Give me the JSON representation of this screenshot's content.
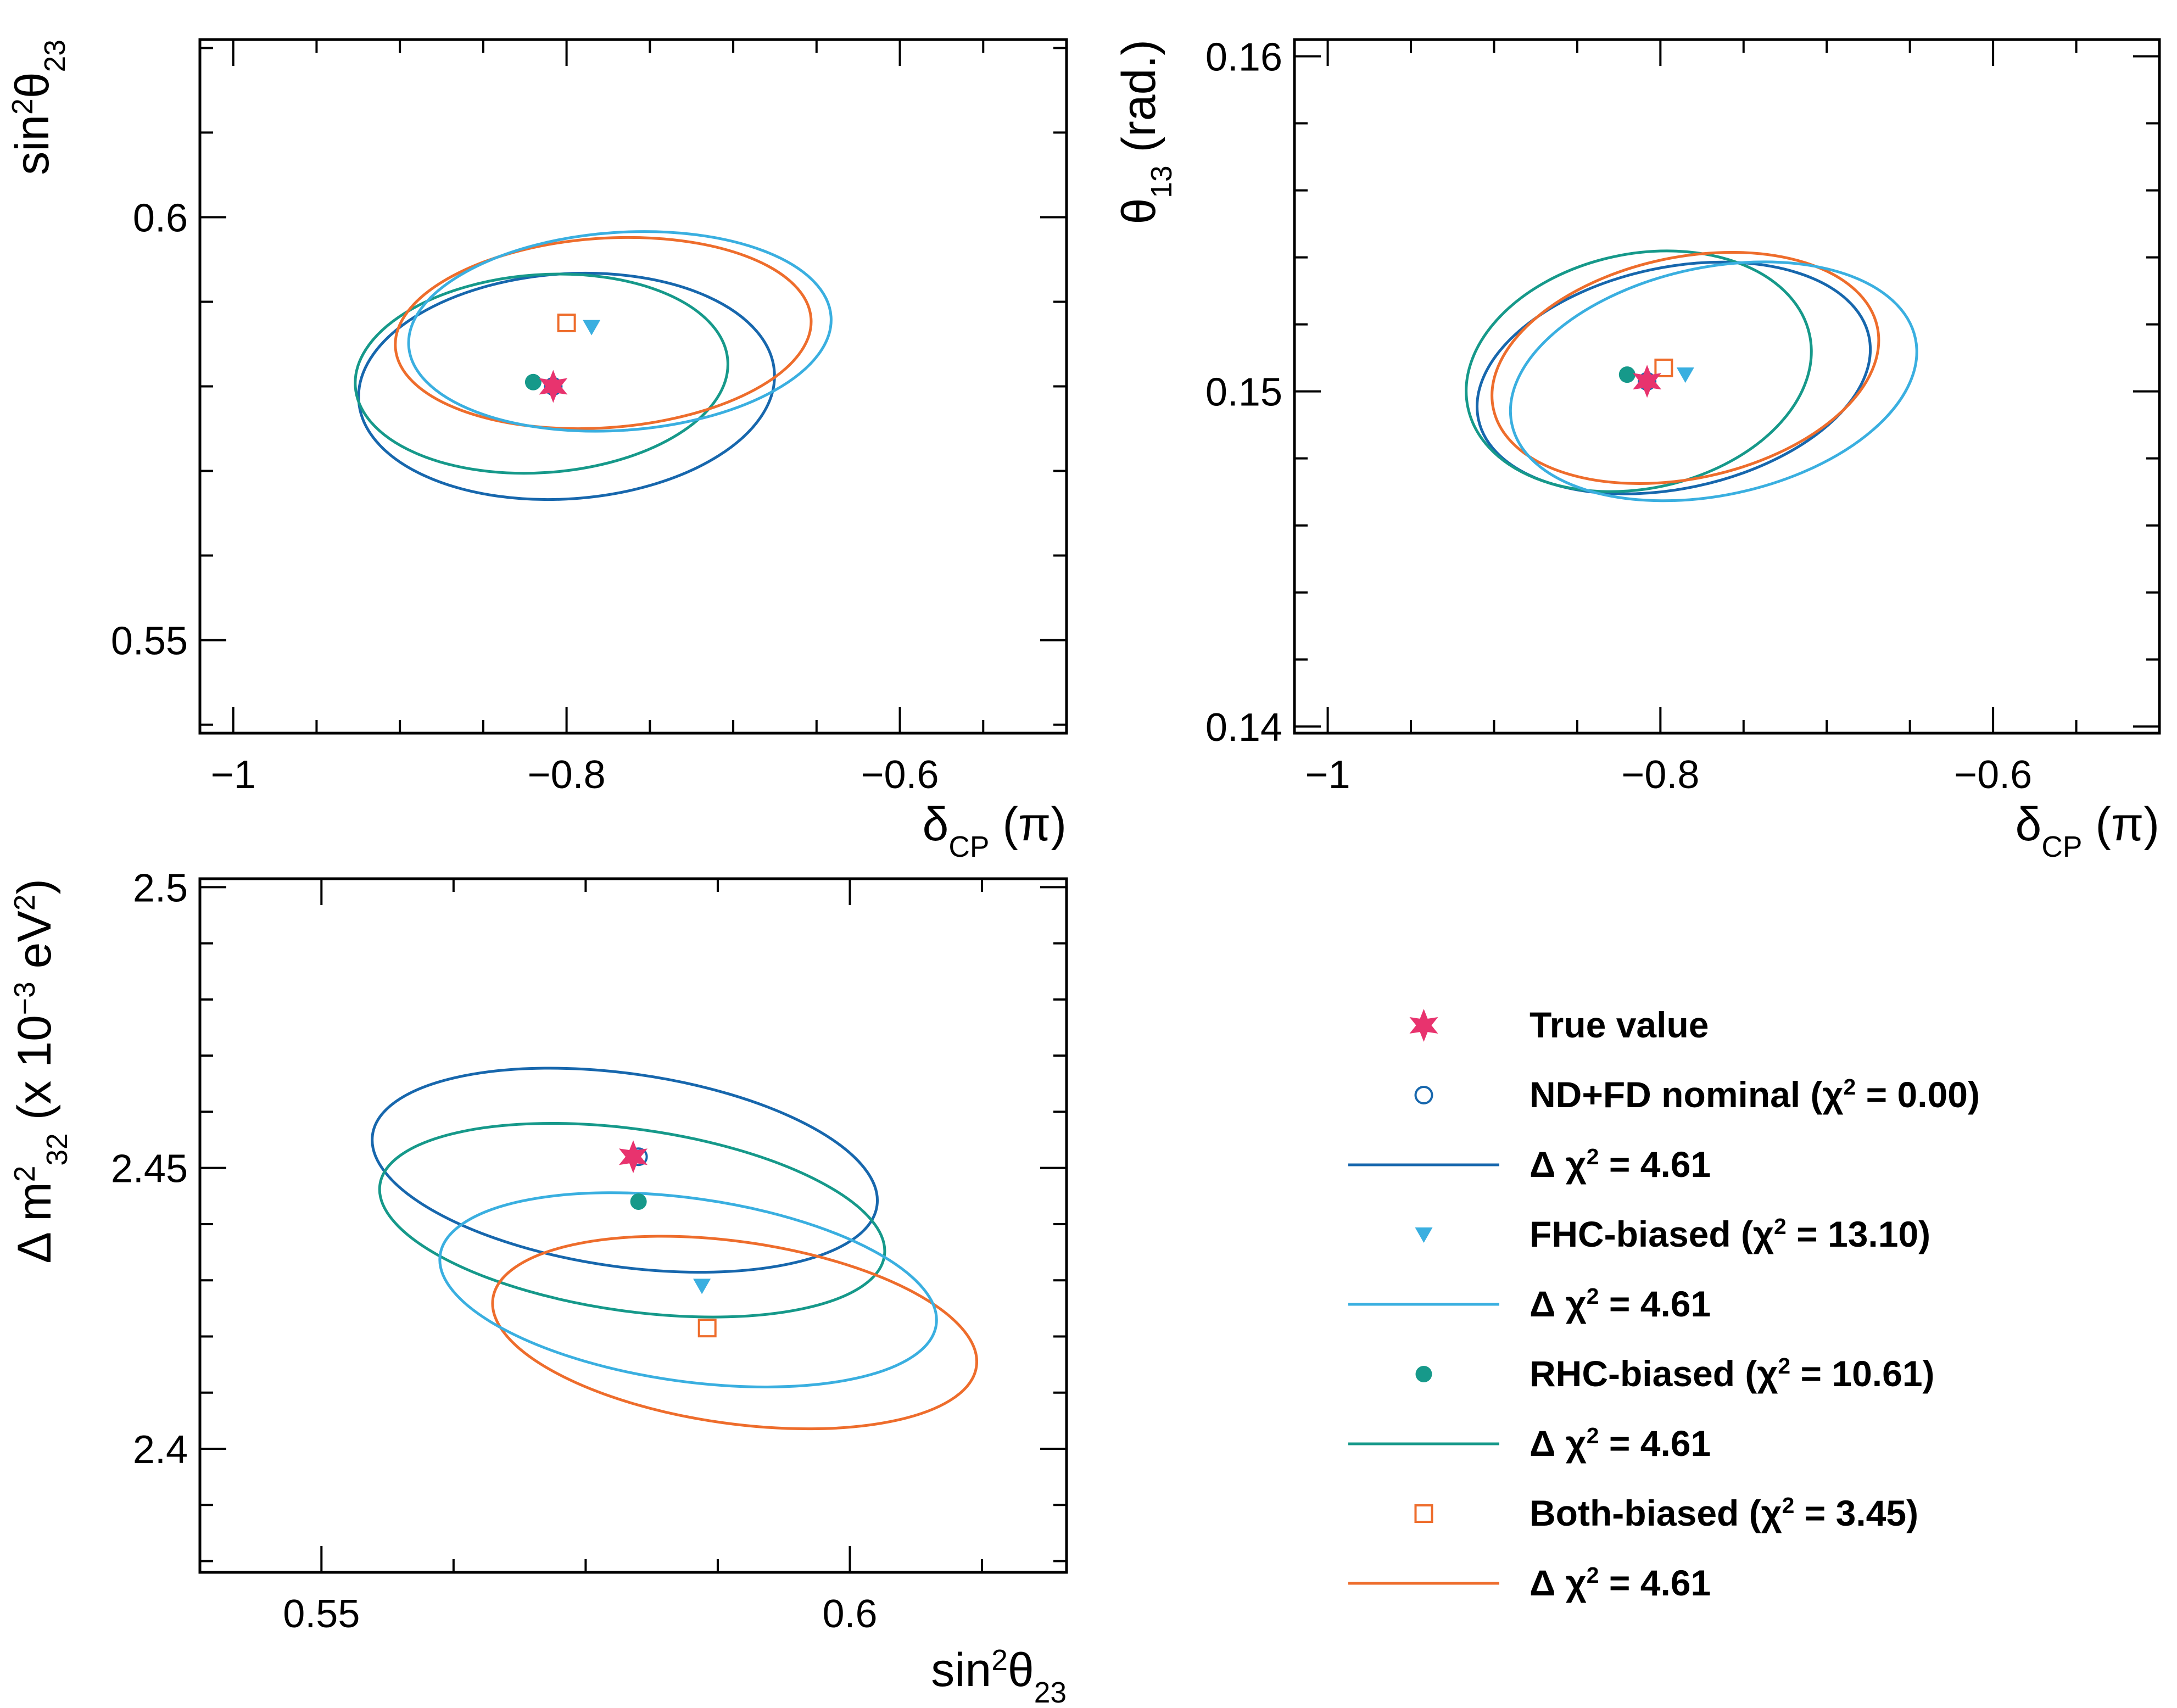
{
  "chart_data": [
    {
      "type": "contour",
      "panel": "top-left",
      "xlabel": "δ_CP (π)",
      "ylabel": "sin²θ₂₃",
      "xlim": [
        -1.02,
        -0.5
      ],
      "ylim": [
        0.539,
        0.621
      ],
      "x_ticks": [
        {
          "value": -1,
          "label": "−1"
        },
        {
          "value": -0.8,
          "label": "−0.8"
        },
        {
          "value": -0.6,
          "label": "−0.6"
        }
      ],
      "y_ticks": [
        {
          "value": 0.55,
          "label": "0.55"
        },
        {
          "value": 0.6,
          "label": "0.6"
        }
      ],
      "points": [
        {
          "series": "true",
          "x": -0.808,
          "y": 0.58
        },
        {
          "series": "nominal",
          "x": -0.808,
          "y": 0.58
        },
        {
          "series": "fhc",
          "x": -0.785,
          "y": 0.587
        },
        {
          "series": "rhc",
          "x": -0.82,
          "y": 0.5805
        },
        {
          "series": "both",
          "x": -0.8,
          "y": 0.5875
        }
      ],
      "contours": [
        {
          "series": "nominal",
          "cx": -0.8,
          "cy": 0.58,
          "rx": 0.125,
          "ry": 0.0133
        },
        {
          "series": "fhc",
          "cx": -0.768,
          "cy": 0.5865,
          "rx": 0.127,
          "ry": 0.0117
        },
        {
          "series": "rhc",
          "cx": -0.815,
          "cy": 0.5815,
          "rx": 0.112,
          "ry": 0.0117
        },
        {
          "series": "both",
          "cx": -0.778,
          "cy": 0.5863,
          "rx": 0.125,
          "ry": 0.0112
        }
      ]
    },
    {
      "type": "contour",
      "panel": "top-right",
      "xlabel": "δ_CP (π)",
      "ylabel": "θ₁₃ (rad.)",
      "xlim": [
        -1.02,
        -0.5
      ],
      "ylim": [
        0.1398,
        0.1605
      ],
      "x_ticks": [
        {
          "value": -1,
          "label": "−1"
        },
        {
          "value": -0.8,
          "label": "−0.8"
        },
        {
          "value": -0.6,
          "label": "−0.6"
        }
      ],
      "y_ticks": [
        {
          "value": 0.14,
          "label": "0.14"
        },
        {
          "value": 0.15,
          "label": "0.15"
        },
        {
          "value": 0.16,
          "label": "0.16"
        }
      ],
      "points": [
        {
          "series": "true",
          "x": -0.808,
          "y": 0.1503
        },
        {
          "series": "nominal",
          "x": -0.808,
          "y": 0.1503
        },
        {
          "series": "fhc",
          "x": -0.785,
          "y": 0.1505
        },
        {
          "series": "rhc",
          "x": -0.82,
          "y": 0.1505
        },
        {
          "series": "both",
          "x": -0.798,
          "y": 0.1507
        }
      ],
      "contours": [
        {
          "series": "nominal",
          "cx": -0.792,
          "cy": 0.1504,
          "rx": 0.12,
          "ry": 0.0033
        },
        {
          "series": "fhc",
          "cx": -0.768,
          "cy": 0.1503,
          "rx": 0.124,
          "ry": 0.0034
        },
        {
          "series": "rhc",
          "cx": -0.813,
          "cy": 0.1506,
          "rx": 0.105,
          "ry": 0.0035
        },
        {
          "series": "both",
          "cx": -0.785,
          "cy": 0.1507,
          "rx": 0.118,
          "ry": 0.0033
        }
      ]
    },
    {
      "type": "contour",
      "panel": "bottom-left",
      "xlabel": "sin²θ₂₃",
      "ylabel": "Δ m²₃₂ (x 10⁻³ eV²)",
      "xlim": [
        0.5385,
        0.6205
      ],
      "ylim": [
        2.378,
        2.5015
      ],
      "x_ticks": [
        {
          "value": 0.55,
          "label": "0.55"
        },
        {
          "value": 0.6,
          "label": "0.6"
        }
      ],
      "y_ticks": [
        {
          "value": 2.4,
          "label": "2.4"
        },
        {
          "value": 2.45,
          "label": "2.45"
        },
        {
          "value": 2.5,
          "label": "2.5"
        }
      ],
      "points": [
        {
          "series": "true",
          "x": 0.5795,
          "y": 2.452
        },
        {
          "series": "nominal",
          "x": 0.58,
          "y": 2.452
        },
        {
          "series": "fhc",
          "x": 0.586,
          "y": 2.429
        },
        {
          "series": "rhc",
          "x": 0.58,
          "y": 2.444
        },
        {
          "series": "both",
          "x": 0.5865,
          "y": 2.4215
        }
      ],
      "contours": [
        {
          "series": "nominal",
          "cx": 0.5787,
          "cy": 2.4496,
          "rx": 0.0241,
          "ry": 0.0172
        },
        {
          "series": "fhc",
          "cx": 0.5847,
          "cy": 2.4283,
          "rx": 0.0237,
          "ry": 0.0163
        },
        {
          "series": "rhc",
          "cx": 0.5794,
          "cy": 2.4407,
          "rx": 0.0241,
          "ry": 0.0162
        },
        {
          "series": "both",
          "cx": 0.5891,
          "cy": 2.4207,
          "rx": 0.0231,
          "ry": 0.0162
        }
      ]
    }
  ],
  "colors": {
    "true": "#e8336e",
    "nominal": "#1767ad",
    "fhc": "#3aafe0",
    "rhc": "#16998a",
    "both": "#ee6d2c"
  },
  "legend": {
    "position": "bottom-right",
    "entries": [
      {
        "kind": "marker",
        "marker": "star",
        "series": "true",
        "text": "True value"
      },
      {
        "kind": "marker",
        "marker": "open-circle",
        "series": "nominal",
        "text": "ND+FD nominal (χ² = 0.00)"
      },
      {
        "kind": "line",
        "series": "nominal",
        "text": "Δ  χ² = 4.61"
      },
      {
        "kind": "marker",
        "marker": "triangle-down",
        "series": "fhc",
        "text": "FHC-biased (χ² = 13.10)"
      },
      {
        "kind": "line",
        "series": "fhc",
        "text": "Δ  χ² = 4.61"
      },
      {
        "kind": "marker",
        "marker": "filled-circle",
        "series": "rhc",
        "text": "RHC-biased (χ² = 10.61)"
      },
      {
        "kind": "line",
        "series": "rhc",
        "text": "Δ  χ² = 4.61"
      },
      {
        "kind": "marker",
        "marker": "open-square",
        "series": "both",
        "text": "Both-biased (χ² = 3.45)"
      },
      {
        "kind": "line",
        "series": "both",
        "text": "Δ  χ² = 4.61"
      }
    ]
  }
}
